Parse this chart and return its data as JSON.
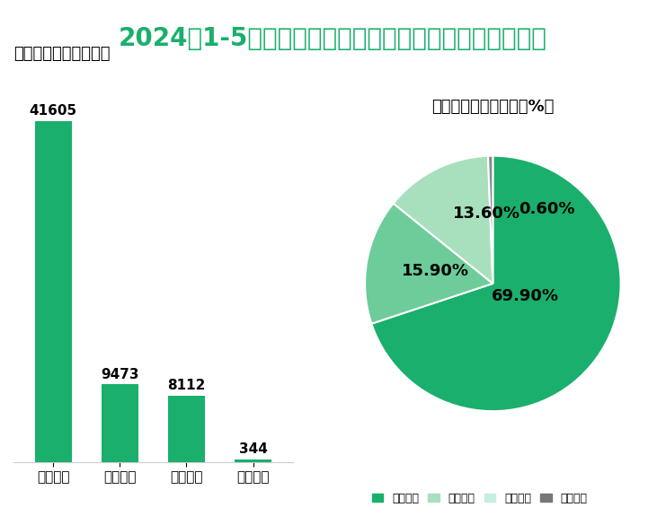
{
  "title": "2024年1-5月我国规模以上电子信息制造业地区营收情况",
  "bar_title": "实现营业收入（亿元）",
  "pie_title": "营业收入占全国比重（%）",
  "categories": [
    "东部地区",
    "中部地区",
    "西部地区",
    "东北地区"
  ],
  "bar_values": [
    41605,
    9473,
    8112,
    344
  ],
  "pie_values": [
    69.9,
    15.9,
    13.6,
    0.6
  ],
  "pie_labels": [
    "69.90%",
    "15.90%",
    "13.60%",
    "0.60%"
  ],
  "bar_color": "#1aaf6c",
  "pie_colors": [
    "#1aaf6c",
    "#6dcc9a",
    "#a8e0be",
    "#888888"
  ],
  "legend_colors": [
    "#1aaf6c",
    "#a8e0be",
    "#d4f0e0",
    "#555555"
  ],
  "bg_color": "#ffffff",
  "title_color": "#1aaf6c",
  "title_fontsize": 20,
  "subtitle_fontsize": 13,
  "bar_label_fontsize": 11,
  "pie_label_fontsize": 13,
  "axis_label_fontsize": 11
}
